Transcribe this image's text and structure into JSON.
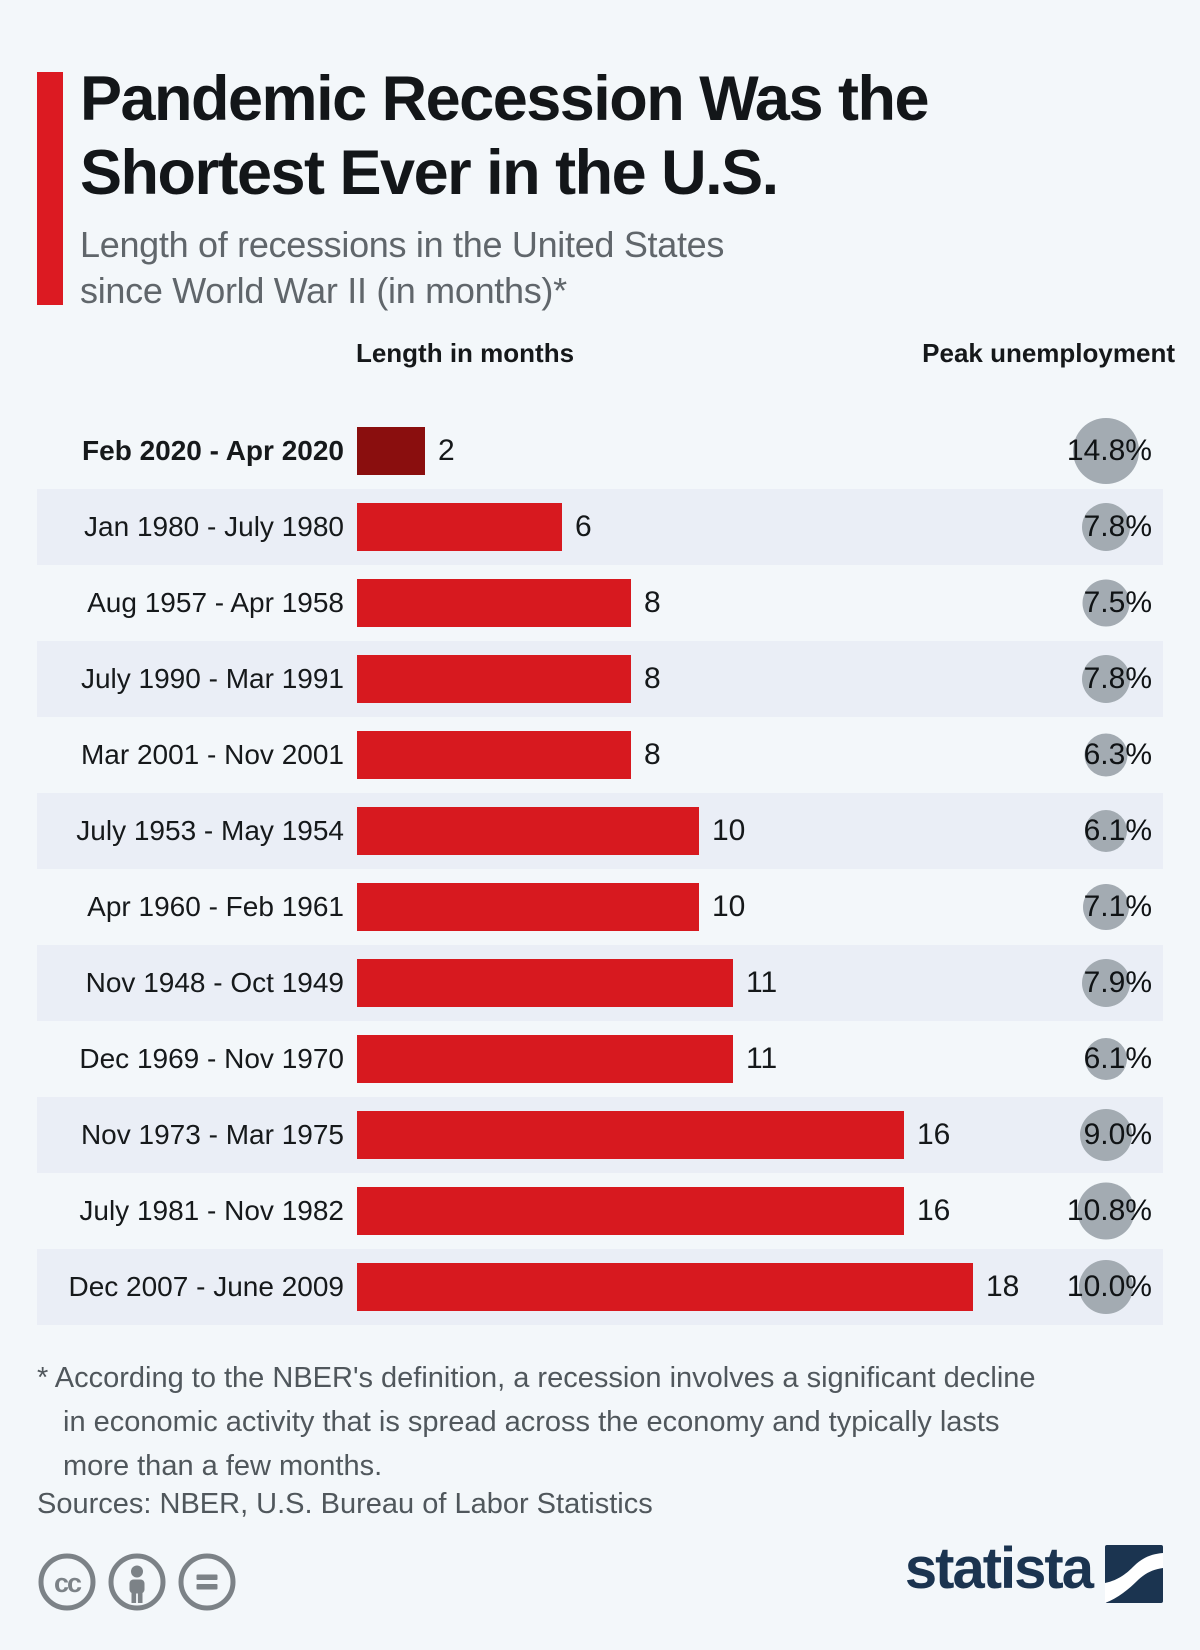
{
  "header": {
    "title": {
      "line1": "Pandemic Recession Was the",
      "line2": "Shortest Ever in the U.S."
    },
    "subtitle": {
      "line1": "Length of recessions in the United States",
      "line2": "since World War II (in months)*"
    }
  },
  "columns": {
    "length_label": "Length in months",
    "unemployment_label": "Peak unemployment"
  },
  "chart_data": {
    "type": "bar",
    "orientation": "horizontal",
    "value_unit": "months",
    "xlim": [
      0,
      18
    ],
    "legend_position": "none",
    "grid": false,
    "rows": [
      {
        "label": "Feb 2020 - Apr 2020",
        "months": 2,
        "peak_unemployment": "14.8%",
        "highlight": true
      },
      {
        "label": "Jan 1980 - July 1980",
        "months": 6,
        "peak_unemployment": "7.8%",
        "highlight": false
      },
      {
        "label": "Aug 1957 - Apr 1958",
        "months": 8,
        "peak_unemployment": "7.5%",
        "highlight": false
      },
      {
        "label": "July 1990 - Mar 1991",
        "months": 8,
        "peak_unemployment": "7.8%",
        "highlight": false
      },
      {
        "label": "Mar 2001 - Nov 2001",
        "months": 8,
        "peak_unemployment": "6.3%",
        "highlight": false
      },
      {
        "label": "July 1953 - May 1954",
        "months": 10,
        "peak_unemployment": "6.1%",
        "highlight": false
      },
      {
        "label": "Apr 1960 - Feb 1961",
        "months": 10,
        "peak_unemployment": "7.1%",
        "highlight": false
      },
      {
        "label": "Nov 1948 - Oct 1949",
        "months": 11,
        "peak_unemployment": "7.9%",
        "highlight": false
      },
      {
        "label": "Dec 1969 - Nov 1970",
        "months": 11,
        "peak_unemployment": "6.1%",
        "highlight": false
      },
      {
        "label": "Nov 1973 - Mar 1975",
        "months": 16,
        "peak_unemployment": "9.0%",
        "highlight": false
      },
      {
        "label": "July 1981 - Nov 1982",
        "months": 16,
        "peak_unemployment": "10.8%",
        "highlight": false
      },
      {
        "label": "Dec 2007 - June 2009",
        "months": 18,
        "peak_unemployment": "10.0%",
        "highlight": false
      }
    ]
  },
  "footnote": {
    "lines": [
      "* According to the NBER's definition, a recession involves a significant decline",
      "in economic activity that is spread across the economy and typically lasts",
      "more than a few months."
    ]
  },
  "sources": "Sources: NBER, U.S. Bureau of Labor Statistics",
  "footer": {
    "license_icons": [
      "cc-icon",
      "attribution-icon",
      "nd-icon"
    ],
    "brand": {
      "name": "statista"
    }
  },
  "colors": {
    "background": "#f3f7fa",
    "row_band": "#eaeef6",
    "accent": "#dc1a22",
    "bar": "#d7191f",
    "bar_highlight": "#8a0e0e",
    "unemployment_circle": "#a3abb2",
    "brand_navy": "#1b3450",
    "icon_gray": "#7c8287"
  }
}
